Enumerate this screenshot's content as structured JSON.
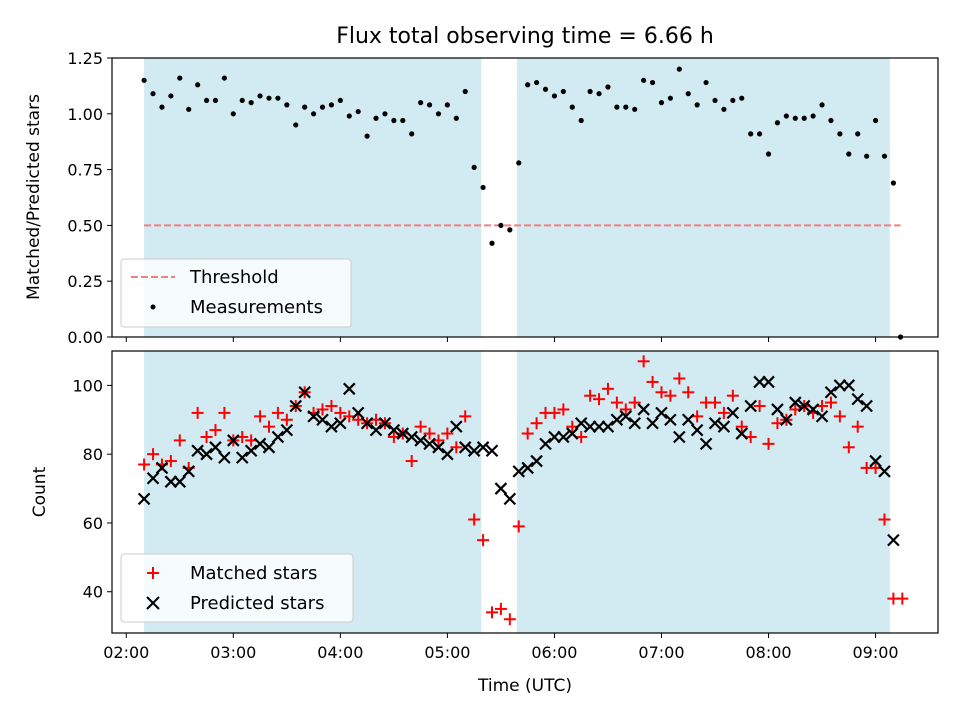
{
  "chart_data": [
    {
      "type": "scatter",
      "title": "Flux total observing time = 6.66 h",
      "xlabel": "",
      "ylabel": "Matched/Predicted stars",
      "ylim": [
        0.0,
        1.25
      ],
      "xlim": [
        "01:52",
        "09:35"
      ],
      "yticks": [
        "0.00",
        "0.25",
        "0.50",
        "0.75",
        "1.00",
        "1.25"
      ],
      "shaded_intervals": [
        [
          "02:10",
          "05:19"
        ],
        [
          "05:39",
          "09:08"
        ]
      ],
      "shade_color": "#add8e6",
      "legend": {
        "position": "lower-left",
        "entries": [
          "Threshold",
          "Measurements"
        ]
      },
      "threshold": {
        "name": "Threshold",
        "value": 0.5,
        "x_range": [
          "02:10",
          "09:14"
        ],
        "color": "#f08080",
        "style": "dashed"
      },
      "series": [
        {
          "name": "Measurements",
          "color": "#000000",
          "marker": "dot",
          "x": [
            "02:10",
            "02:15",
            "02:20",
            "02:25",
            "02:30",
            "02:35",
            "02:40",
            "02:45",
            "02:50",
            "02:55",
            "03:00",
            "03:05",
            "03:10",
            "03:15",
            "03:20",
            "03:25",
            "03:30",
            "03:35",
            "03:40",
            "03:45",
            "03:50",
            "03:55",
            "04:00",
            "04:05",
            "04:10",
            "04:15",
            "04:20",
            "04:25",
            "04:30",
            "04:35",
            "04:40",
            "04:45",
            "04:50",
            "04:55",
            "05:00",
            "05:05",
            "05:10",
            "05:15",
            "05:20",
            "05:25",
            "05:30",
            "05:35",
            "05:40",
            "05:45",
            "05:50",
            "05:55",
            "06:00",
            "06:05",
            "06:10",
            "06:15",
            "06:20",
            "06:25",
            "06:30",
            "06:35",
            "06:40",
            "06:45",
            "06:50",
            "06:55",
            "07:00",
            "07:05",
            "07:10",
            "07:15",
            "07:20",
            "07:25",
            "07:30",
            "07:35",
            "07:40",
            "07:45",
            "07:50",
            "07:55",
            "08:00",
            "08:05",
            "08:10",
            "08:15",
            "08:20",
            "08:25",
            "08:30",
            "08:35",
            "08:40",
            "08:45",
            "08:50",
            "08:55",
            "09:00",
            "09:05",
            "09:10"
          ],
          "y": [
            1.15,
            1.09,
            1.03,
            1.08,
            1.16,
            1.02,
            1.13,
            1.06,
            1.06,
            1.16,
            1.0,
            1.06,
            1.05,
            1.08,
            1.07,
            1.07,
            1.04,
            0.95,
            1.03,
            1.0,
            1.03,
            1.04,
            1.06,
            0.99,
            1.01,
            0.9,
            0.98,
            1.0,
            0.97,
            0.97,
            0.91,
            1.05,
            1.04,
            1.0,
            1.04,
            0.98,
            1.1,
            0.76,
            0.67,
            0.42,
            0.5,
            0.48,
            0.78,
            1.13,
            1.14,
            1.11,
            1.08,
            1.1,
            1.03,
            0.97,
            1.1,
            1.09,
            1.12,
            1.03,
            1.03,
            1.02,
            1.15,
            1.14,
            1.05,
            1.07,
            1.2,
            1.09,
            1.04,
            1.14,
            1.06,
            1.02,
            1.06,
            1.07,
            0.91,
            0.91,
            0.82,
            0.96,
            0.99,
            0.98,
            0.98,
            0.99,
            1.04,
            0.97,
            0.91,
            0.82,
            0.91,
            0.81,
            0.97,
            0.81,
            0.69
          ]
        },
        {
          "name": "",
          "color": "#000000",
          "marker": "dot",
          "x": [
            "09:14"
          ],
          "y": [
            0.0
          ]
        }
      ]
    },
    {
      "type": "scatter",
      "xlabel": "Time (UTC)",
      "ylabel": "Count",
      "ylim": [
        28,
        110
      ],
      "xlim": [
        "01:52",
        "09:35"
      ],
      "yticks": [
        "40",
        "60",
        "80",
        "100"
      ],
      "xticks": [
        "02:00",
        "03:00",
        "04:00",
        "05:00",
        "06:00",
        "07:00",
        "08:00",
        "09:00"
      ],
      "shaded_intervals": [
        [
          "02:10",
          "05:19"
        ],
        [
          "05:39",
          "09:08"
        ]
      ],
      "shade_color": "#add8e6",
      "legend": {
        "position": "lower-left",
        "entries": [
          "Matched stars",
          "Predicted stars"
        ]
      },
      "series": [
        {
          "name": "Matched stars",
          "color": "#ff0000",
          "marker": "plus",
          "x": [
            "02:10",
            "02:15",
            "02:20",
            "02:25",
            "02:30",
            "02:35",
            "02:40",
            "02:45",
            "02:50",
            "02:55",
            "03:00",
            "03:05",
            "03:10",
            "03:15",
            "03:20",
            "03:25",
            "03:30",
            "03:35",
            "03:40",
            "03:45",
            "03:50",
            "03:55",
            "04:00",
            "04:05",
            "04:10",
            "04:15",
            "04:20",
            "04:25",
            "04:30",
            "04:35",
            "04:40",
            "04:45",
            "04:50",
            "04:55",
            "05:00",
            "05:05",
            "05:10",
            "05:15",
            "05:20",
            "05:25",
            "05:30",
            "05:35",
            "05:40",
            "05:45",
            "05:50",
            "05:55",
            "06:00",
            "06:05",
            "06:10",
            "06:15",
            "06:20",
            "06:25",
            "06:30",
            "06:35",
            "06:40",
            "06:45",
            "06:50",
            "06:55",
            "07:00",
            "07:05",
            "07:10",
            "07:15",
            "07:20",
            "07:25",
            "07:30",
            "07:35",
            "07:40",
            "07:45",
            "07:50",
            "07:55",
            "08:00",
            "08:05",
            "08:10",
            "08:15",
            "08:20",
            "08:25",
            "08:30",
            "08:35",
            "08:40",
            "08:45",
            "08:50",
            "08:55",
            "09:00",
            "09:05",
            "09:10",
            "09:15"
          ],
          "y": [
            77,
            80,
            77,
            78,
            84,
            76,
            92,
            85,
            87,
            92,
            84,
            85,
            84,
            91,
            88,
            92,
            90,
            94,
            98,
            92,
            93,
            94,
            92,
            91,
            90,
            89,
            90,
            89,
            85,
            86,
            78,
            88,
            86,
            84,
            86,
            82,
            91,
            61,
            55,
            34,
            35,
            32,
            59,
            86,
            89,
            92,
            92,
            93,
            88,
            85,
            97,
            96,
            99,
            95,
            93,
            95,
            107,
            101,
            98,
            97,
            102,
            98,
            91,
            95,
            95,
            92,
            97,
            88,
            85,
            94,
            83,
            89,
            90,
            93,
            94,
            92,
            94,
            95,
            91,
            82,
            88,
            76,
            76,
            61,
            38,
            38
          ]
        },
        {
          "name": "Predicted stars",
          "color": "#000000",
          "marker": "x",
          "x": [
            "02:10",
            "02:15",
            "02:20",
            "02:25",
            "02:30",
            "02:35",
            "02:40",
            "02:45",
            "02:50",
            "02:55",
            "03:00",
            "03:05",
            "03:10",
            "03:15",
            "03:20",
            "03:25",
            "03:30",
            "03:35",
            "03:40",
            "03:45",
            "03:50",
            "03:55",
            "04:00",
            "04:05",
            "04:10",
            "04:15",
            "04:20",
            "04:25",
            "04:30",
            "04:35",
            "04:40",
            "04:45",
            "04:50",
            "04:55",
            "05:00",
            "05:05",
            "05:10",
            "05:15",
            "05:20",
            "05:25",
            "05:30",
            "05:35",
            "05:40",
            "05:45",
            "05:50",
            "05:55",
            "06:00",
            "06:05",
            "06:10",
            "06:15",
            "06:20",
            "06:25",
            "06:30",
            "06:35",
            "06:40",
            "06:45",
            "06:50",
            "06:55",
            "07:00",
            "07:05",
            "07:10",
            "07:15",
            "07:20",
            "07:25",
            "07:30",
            "07:35",
            "07:40",
            "07:45",
            "07:50",
            "07:55",
            "08:00",
            "08:05",
            "08:10",
            "08:15",
            "08:20",
            "08:25",
            "08:30",
            "08:35",
            "08:40",
            "08:45",
            "08:50",
            "08:55",
            "09:00",
            "09:05",
            "09:10"
          ],
          "y": [
            67,
            73,
            76,
            72,
            72,
            75,
            81,
            80,
            82,
            79,
            84,
            79,
            81,
            83,
            82,
            85,
            87,
            94,
            98,
            91,
            90,
            88,
            89,
            99,
            92,
            89,
            87,
            89,
            87,
            86,
            85,
            84,
            83,
            82,
            80,
            88,
            82,
            81,
            82,
            81,
            70,
            67,
            75,
            76,
            78,
            83,
            85,
            85,
            86,
            89,
            88,
            88,
            88,
            90,
            91,
            89,
            93,
            89,
            92,
            90,
            85,
            90,
            87,
            83,
            89,
            88,
            92,
            86,
            94,
            101,
            101,
            93,
            90,
            95,
            94,
            93,
            91,
            98,
            100,
            100,
            96,
            94,
            78,
            75,
            55
          ]
        }
      ]
    }
  ]
}
